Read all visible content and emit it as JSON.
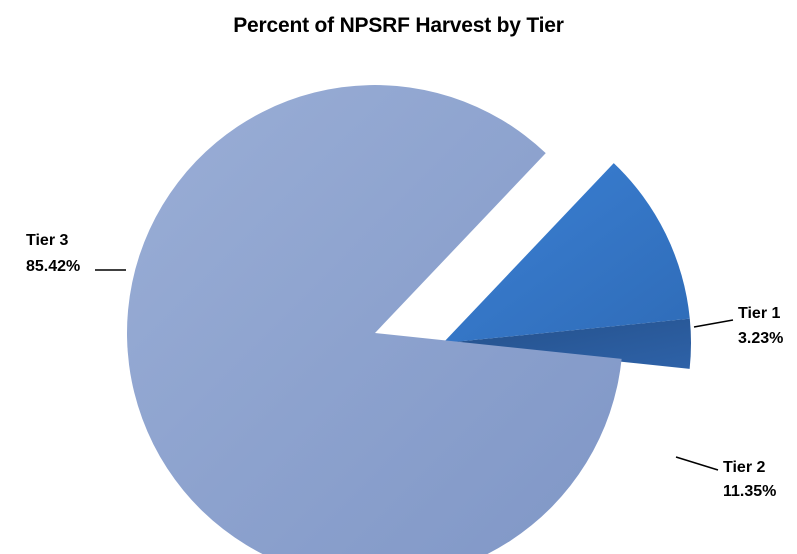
{
  "chart_data": {
    "type": "pie",
    "title": "Percent of NPSRF Harvest by Tier",
    "exploded": true,
    "slices": [
      {
        "name": "Tier 1",
        "value": 3.23,
        "label": "3.23%",
        "color": "#2e5f9e"
      },
      {
        "name": "Tier 2",
        "value": 11.35,
        "label": "11.35%",
        "color": "#3a7bcc"
      },
      {
        "name": "Tier 3",
        "value": 85.42,
        "label": "85.42%",
        "color": "#8fa3cf"
      }
    ]
  }
}
